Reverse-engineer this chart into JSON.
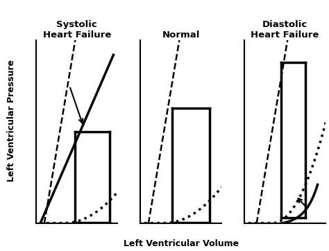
{
  "panel_titles": [
    "Systolic\nHeart Failure",
    "Normal",
    "Diastolic\nHeart Failure"
  ],
  "xlabel": "Left Ventricular Volume",
  "ylabel": "Left Ventricular Pressure",
  "background_color": "#ffffff",
  "line_color": "#000000",
  "lw_thick": 2.5,
  "lw_dashed": 1.8,
  "lw_axis": 1.5
}
